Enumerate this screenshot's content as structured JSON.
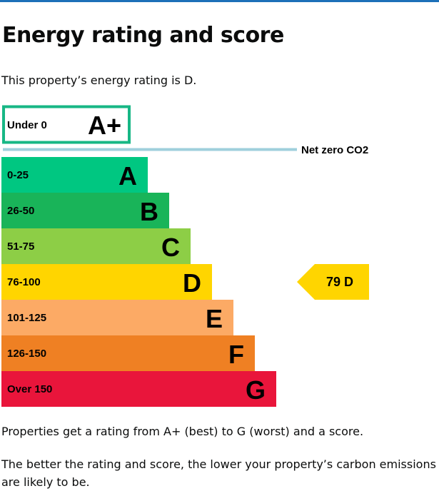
{
  "page": {
    "title": "Energy rating and score",
    "intro": "This property’s energy rating is D.",
    "footer_1": "Properties get a rating from A+ (best) to G (worst) and a score.",
    "footer_2": "The better the rating and score, the lower your property’s carbon emissions are likely to be."
  },
  "colors": {
    "top_rule": "#1d70b8",
    "a_plus_border": "#17b785",
    "net_zero_line": "#9fcfdc"
  },
  "chart_data": {
    "type": "bar",
    "title": "",
    "categories": [
      "A+",
      "A",
      "B",
      "C",
      "D",
      "E",
      "F",
      "G"
    ],
    "bands": [
      {
        "letter": "A+",
        "range": "Under 0",
        "color": "#ffffff",
        "border": "#17b785"
      },
      {
        "letter": "A",
        "range": "0-25",
        "color": "#00c781"
      },
      {
        "letter": "B",
        "range": "26-50",
        "color": "#19b459"
      },
      {
        "letter": "C",
        "range": "51-75",
        "color": "#8dce46"
      },
      {
        "letter": "D",
        "range": "76-100",
        "color": "#ffd500"
      },
      {
        "letter": "E",
        "range": "101-125",
        "color": "#fcaa65"
      },
      {
        "letter": "F",
        "range": "126-150",
        "color": "#ef8023"
      },
      {
        "letter": "G",
        "range": "Over 150",
        "color": "#e9153b"
      }
    ],
    "net_zero_label": "Net zero CO2",
    "current": {
      "score": 79,
      "band": "D",
      "label": "79  D",
      "color": "#ffd500"
    }
  }
}
